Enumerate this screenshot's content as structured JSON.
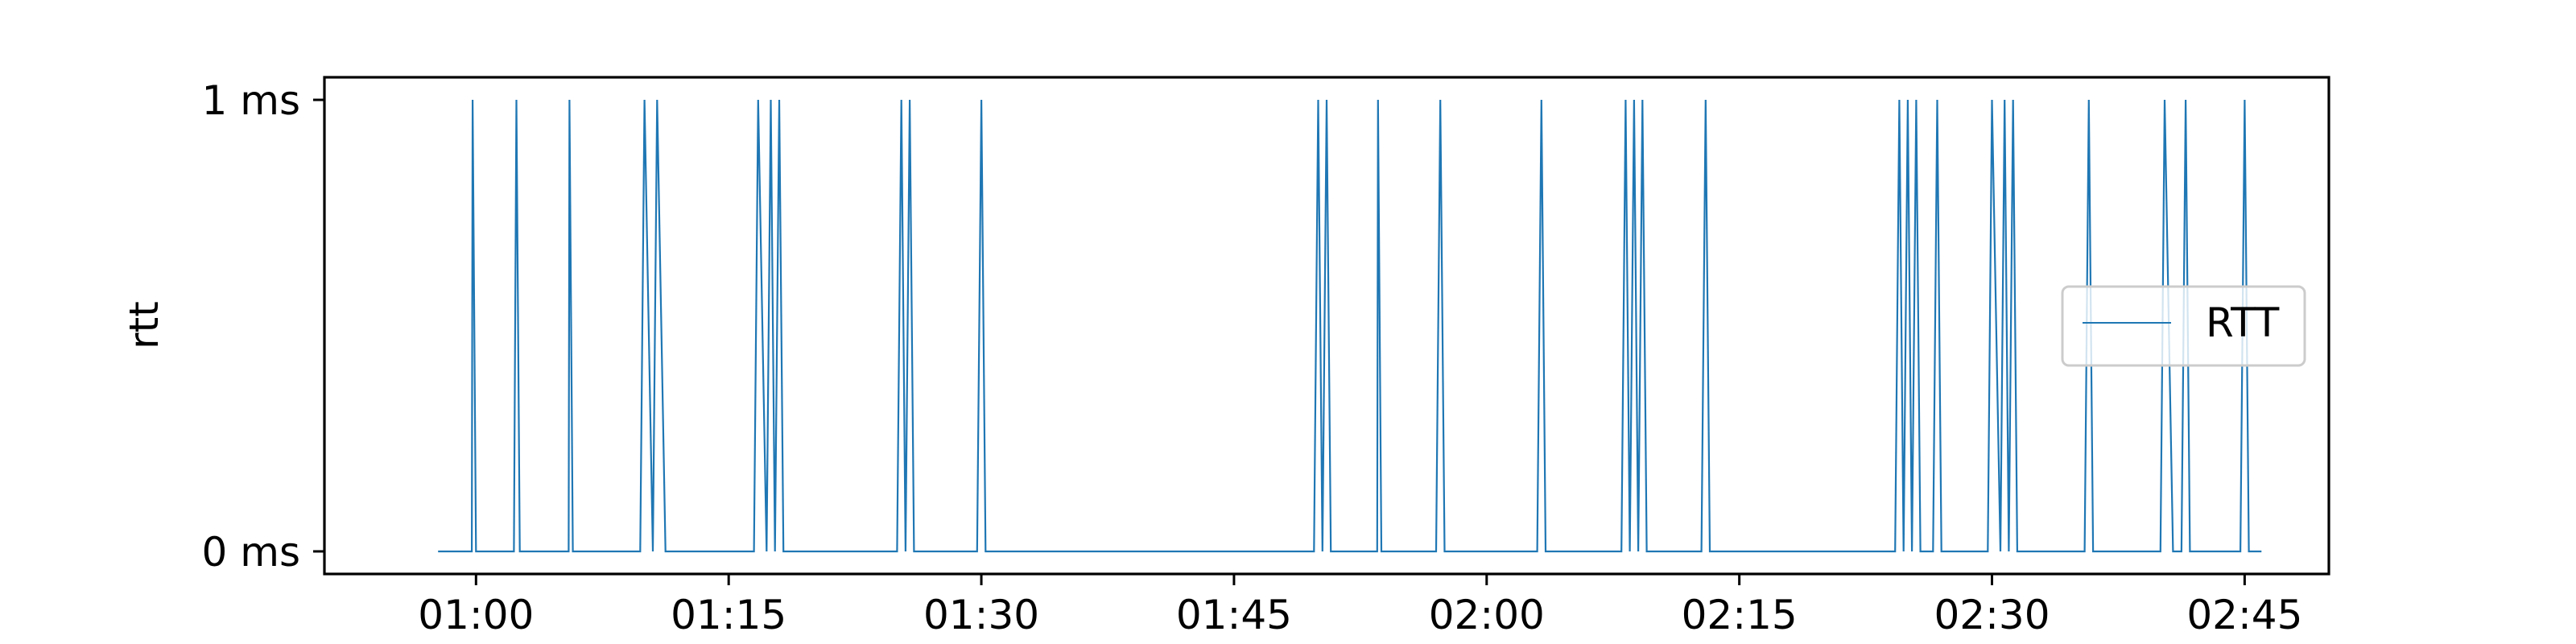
{
  "chart_data": {
    "type": "line",
    "title": "",
    "xlabel": "",
    "ylabel": "rtt",
    "x_tick_labels": [
      "01:00",
      "01:15",
      "01:30",
      "01:45",
      "02:00",
      "02:15",
      "02:30",
      "02:45"
    ],
    "y_tick_labels": [
      "0 ms",
      "1 ms"
    ],
    "xlim": [
      "00:51",
      "02:50"
    ],
    "ylim": [
      -0.05,
      1.05
    ],
    "grid": false,
    "legend_position": "right",
    "series": [
      {
        "name": "RTT",
        "color": "#1f77b4",
        "step_interval_seconds": 15,
        "points": [
          [
            "00:57:45",
            0
          ],
          [
            "00:59:45",
            0
          ],
          [
            "00:59:48",
            1
          ],
          [
            "01:00:00",
            0
          ],
          [
            "01:02:15",
            0
          ],
          [
            "01:02:24",
            1
          ],
          [
            "01:02:36",
            0
          ],
          [
            "01:05:30",
            0
          ],
          [
            "01:05:33",
            1
          ],
          [
            "01:05:45",
            0
          ],
          [
            "01:09:45",
            0
          ],
          [
            "01:10:00",
            1
          ],
          [
            "01:10:30",
            0
          ],
          [
            "01:10:45",
            1
          ],
          [
            "01:11:15",
            0
          ],
          [
            "01:16:30",
            0
          ],
          [
            "01:16:45",
            1
          ],
          [
            "01:17:15",
            0
          ],
          [
            "01:17:30",
            1
          ],
          [
            "01:17:45",
            0
          ],
          [
            "01:18:00",
            1
          ],
          [
            "01:18:15",
            0
          ],
          [
            "01:25:00",
            0
          ],
          [
            "01:25:15",
            1
          ],
          [
            "01:25:30",
            0
          ],
          [
            "01:25:45",
            1
          ],
          [
            "01:26:00",
            0
          ],
          [
            "01:29:45",
            0
          ],
          [
            "01:30:00",
            1
          ],
          [
            "01:30:15",
            0
          ],
          [
            "01:49:45",
            0
          ],
          [
            "01:50:00",
            1
          ],
          [
            "01:50:15",
            0
          ],
          [
            "01:50:30",
            1
          ],
          [
            "01:50:45",
            0
          ],
          [
            "01:53:30",
            0
          ],
          [
            "01:53:33",
            1
          ],
          [
            "01:53:45",
            0
          ],
          [
            "01:57:00",
            0
          ],
          [
            "01:57:15",
            1
          ],
          [
            "01:57:30",
            0
          ],
          [
            "02:03:00",
            0
          ],
          [
            "02:03:15",
            1
          ],
          [
            "02:03:30",
            0
          ],
          [
            "02:08:00",
            0
          ],
          [
            "02:08:15",
            1
          ],
          [
            "02:08:30",
            0
          ],
          [
            "02:08:45",
            1
          ],
          [
            "02:09:00",
            0
          ],
          [
            "02:09:15",
            1
          ],
          [
            "02:09:30",
            0
          ],
          [
            "02:12:45",
            0
          ],
          [
            "02:13:00",
            1
          ],
          [
            "02:13:15",
            0
          ],
          [
            "02:24:15",
            0
          ],
          [
            "02:24:30",
            1
          ],
          [
            "02:24:45",
            0
          ],
          [
            "02:25:00",
            1
          ],
          [
            "02:25:15",
            0
          ],
          [
            "02:25:30",
            1
          ],
          [
            "02:25:45",
            0
          ],
          [
            "02:26:30",
            0
          ],
          [
            "02:26:45",
            1
          ],
          [
            "02:27:00",
            0
          ],
          [
            "02:29:45",
            0
          ],
          [
            "02:30:00",
            1
          ],
          [
            "02:30:30",
            0
          ],
          [
            "02:30:45",
            1
          ],
          [
            "02:31:00",
            0
          ],
          [
            "02:31:15",
            1
          ],
          [
            "02:31:30",
            0
          ],
          [
            "02:35:30",
            0
          ],
          [
            "02:35:45",
            1
          ],
          [
            "02:36:00",
            0
          ],
          [
            "02:40:00",
            0
          ],
          [
            "02:40:15",
            1
          ],
          [
            "02:40:45",
            0
          ],
          [
            "02:41:15",
            0
          ],
          [
            "02:41:30",
            1
          ],
          [
            "02:41:45",
            0
          ],
          [
            "02:44:45",
            0
          ],
          [
            "02:45:00",
            1
          ],
          [
            "02:45:15",
            0
          ],
          [
            "02:46:00",
            0
          ]
        ]
      }
    ]
  }
}
